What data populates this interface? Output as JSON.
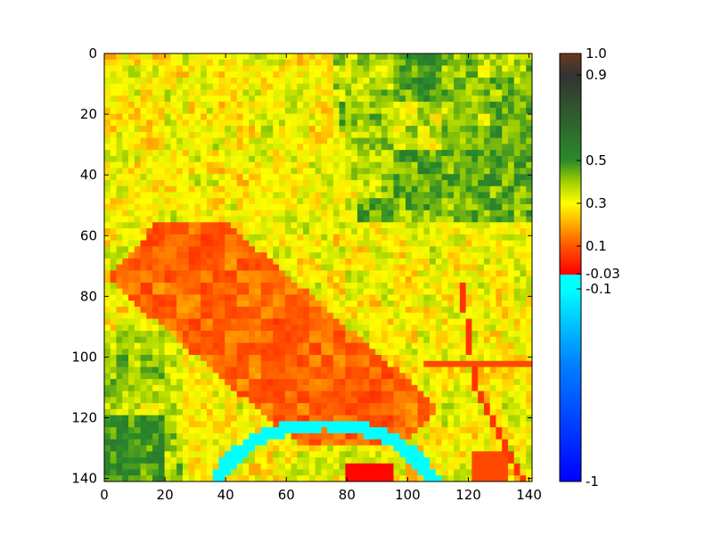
{
  "chart_data": {
    "type": "heatmap",
    "title": "",
    "xlabel": "",
    "ylabel": "",
    "xlim": [
      0,
      141
    ],
    "ylim": [
      141,
      0
    ],
    "grid": false,
    "x_ticks": [
      "0",
      "20",
      "40",
      "60",
      "80",
      "100",
      "120",
      "140"
    ],
    "y_ticks": [
      "0",
      "20",
      "40",
      "60",
      "80",
      "100",
      "120",
      "140"
    ],
    "colorbar": {
      "range": [
        -1,
        1
      ],
      "tick_values": [
        1.0,
        0.9,
        0.5,
        0.3,
        0.1,
        -0.03,
        -0.1,
        -1
      ],
      "tick_labels": [
        "1.0",
        "0.9",
        "0.5",
        "0.3",
        "0.1",
        "-0.03",
        "-0.1",
        "-1"
      ],
      "color_stops": [
        {
          "value": -1.0,
          "color": "#0000ff"
        },
        {
          "value": -0.45,
          "color": "#0080ff"
        },
        {
          "value": -0.1,
          "color": "#00ffff"
        },
        {
          "value": -0.03,
          "color": "#00ffff"
        },
        {
          "value": -0.0299,
          "color": "#ff0000"
        },
        {
          "value": 0.1,
          "color": "#ff5500"
        },
        {
          "value": 0.2,
          "color": "#ffaa00"
        },
        {
          "value": 0.3,
          "color": "#ffff00"
        },
        {
          "value": 0.4,
          "color": "#a0d000"
        },
        {
          "value": 0.5,
          "color": "#2a8a2a"
        },
        {
          "value": 0.9,
          "color": "#333333"
        },
        {
          "value": 1.0,
          "color": "#6b3a1f"
        }
      ]
    },
    "features": {
      "river_color": "#00ffff",
      "urban_color": "#ff8800",
      "field_dark_green": "#3f9a2f",
      "field_light": "#ffff33"
    }
  }
}
